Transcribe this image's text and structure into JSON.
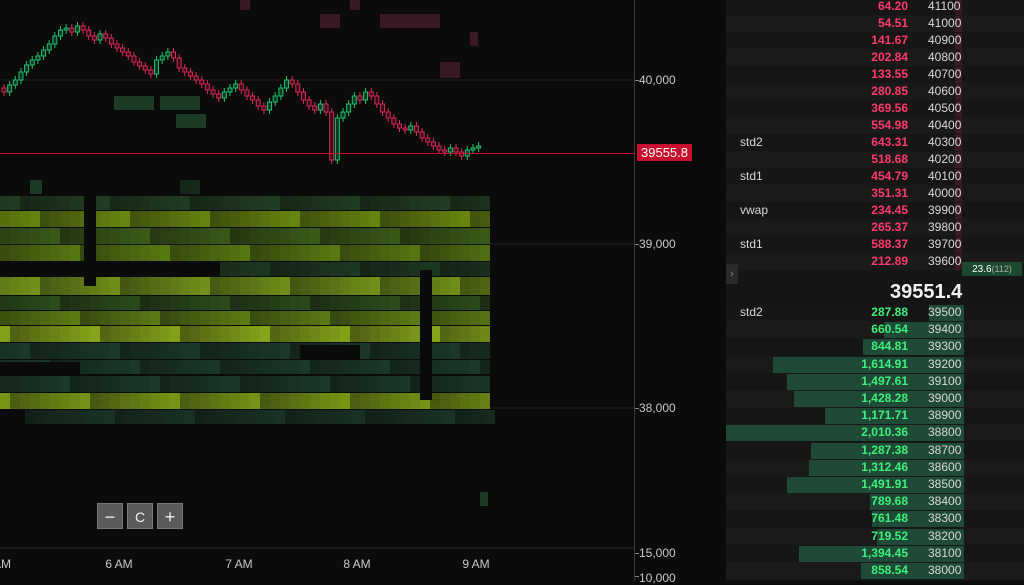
{
  "chart": {
    "y_labels": [
      "40,000",
      "39,000",
      "38,000",
      "15,000",
      "10,000"
    ],
    "x_labels": [
      "AM",
      "6 AM",
      "7 AM",
      "8 AM",
      "9 AM"
    ],
    "current_price": "39555.8",
    "zoom_out_label": "−",
    "reset_label": "C",
    "zoom_in_label": "+"
  },
  "dom": {
    "mid_price": "39551.4",
    "last_trade": "23.6",
    "last_trade_count": "(112)",
    "asks": [
      {
        "label": "",
        "volume": "64.20",
        "price": "41100"
      },
      {
        "label": "",
        "volume": "54.51",
        "price": "41000"
      },
      {
        "label": "",
        "volume": "141.67",
        "price": "40900"
      },
      {
        "label": "",
        "volume": "202.84",
        "price": "40800"
      },
      {
        "label": "",
        "volume": "133.55",
        "price": "40700"
      },
      {
        "label": "",
        "volume": "280.85",
        "price": "40600"
      },
      {
        "label": "",
        "volume": "369.56",
        "price": "40500"
      },
      {
        "label": "",
        "volume": "554.98",
        "price": "40400"
      },
      {
        "label": "std2",
        "volume": "643.31",
        "price": "40300"
      },
      {
        "label": "",
        "volume": "518.68",
        "price": "40200"
      },
      {
        "label": "std1",
        "volume": "454.79",
        "price": "40100"
      },
      {
        "label": "",
        "volume": "351.31",
        "price": "40000"
      },
      {
        "label": "vwap",
        "volume": "234.45",
        "price": "39900"
      },
      {
        "label": "",
        "volume": "265.37",
        "price": "39800"
      },
      {
        "label": "std1",
        "volume": "588.37",
        "price": "39700"
      },
      {
        "label": "",
        "volume": "212.89",
        "price": "39600"
      }
    ],
    "bids": [
      {
        "label": "std2",
        "volume": "287.88",
        "price": "39500",
        "share": 0.14
      },
      {
        "label": "",
        "volume": "660.54",
        "price": "39400",
        "share": 0.33
      },
      {
        "label": "",
        "volume": "844.81",
        "price": "39300",
        "share": 0.42
      },
      {
        "label": "",
        "volume": "1,614.91",
        "price": "39200",
        "share": 0.8
      },
      {
        "label": "",
        "volume": "1,497.61",
        "price": "39100",
        "share": 0.74
      },
      {
        "label": "",
        "volume": "1,428.28",
        "price": "39000",
        "share": 0.71
      },
      {
        "label": "",
        "volume": "1,171.71",
        "price": "38900",
        "share": 0.58
      },
      {
        "label": "",
        "volume": "2,010.36",
        "price": "38800",
        "share": 1.0
      },
      {
        "label": "",
        "volume": "1,287.38",
        "price": "38700",
        "share": 0.64
      },
      {
        "label": "",
        "volume": "1,312.46",
        "price": "38600",
        "share": 0.65
      },
      {
        "label": "",
        "volume": "1,491.91",
        "price": "38500",
        "share": 0.74
      },
      {
        "label": "",
        "volume": "789.68",
        "price": "38400",
        "share": 0.39
      },
      {
        "label": "",
        "volume": "761.48",
        "price": "38300",
        "share": 0.38
      },
      {
        "label": "",
        "volume": "719.52",
        "price": "38200",
        "share": 0.36
      },
      {
        "label": "",
        "volume": "1,394.45",
        "price": "38100",
        "share": 0.69
      },
      {
        "label": "",
        "volume": "858.54",
        "price": "38000",
        "share": 0.43
      }
    ]
  },
  "colors": {
    "ask": "#ff3a6e",
    "bid": "#3cf07a",
    "price_line": "#c8102e"
  }
}
